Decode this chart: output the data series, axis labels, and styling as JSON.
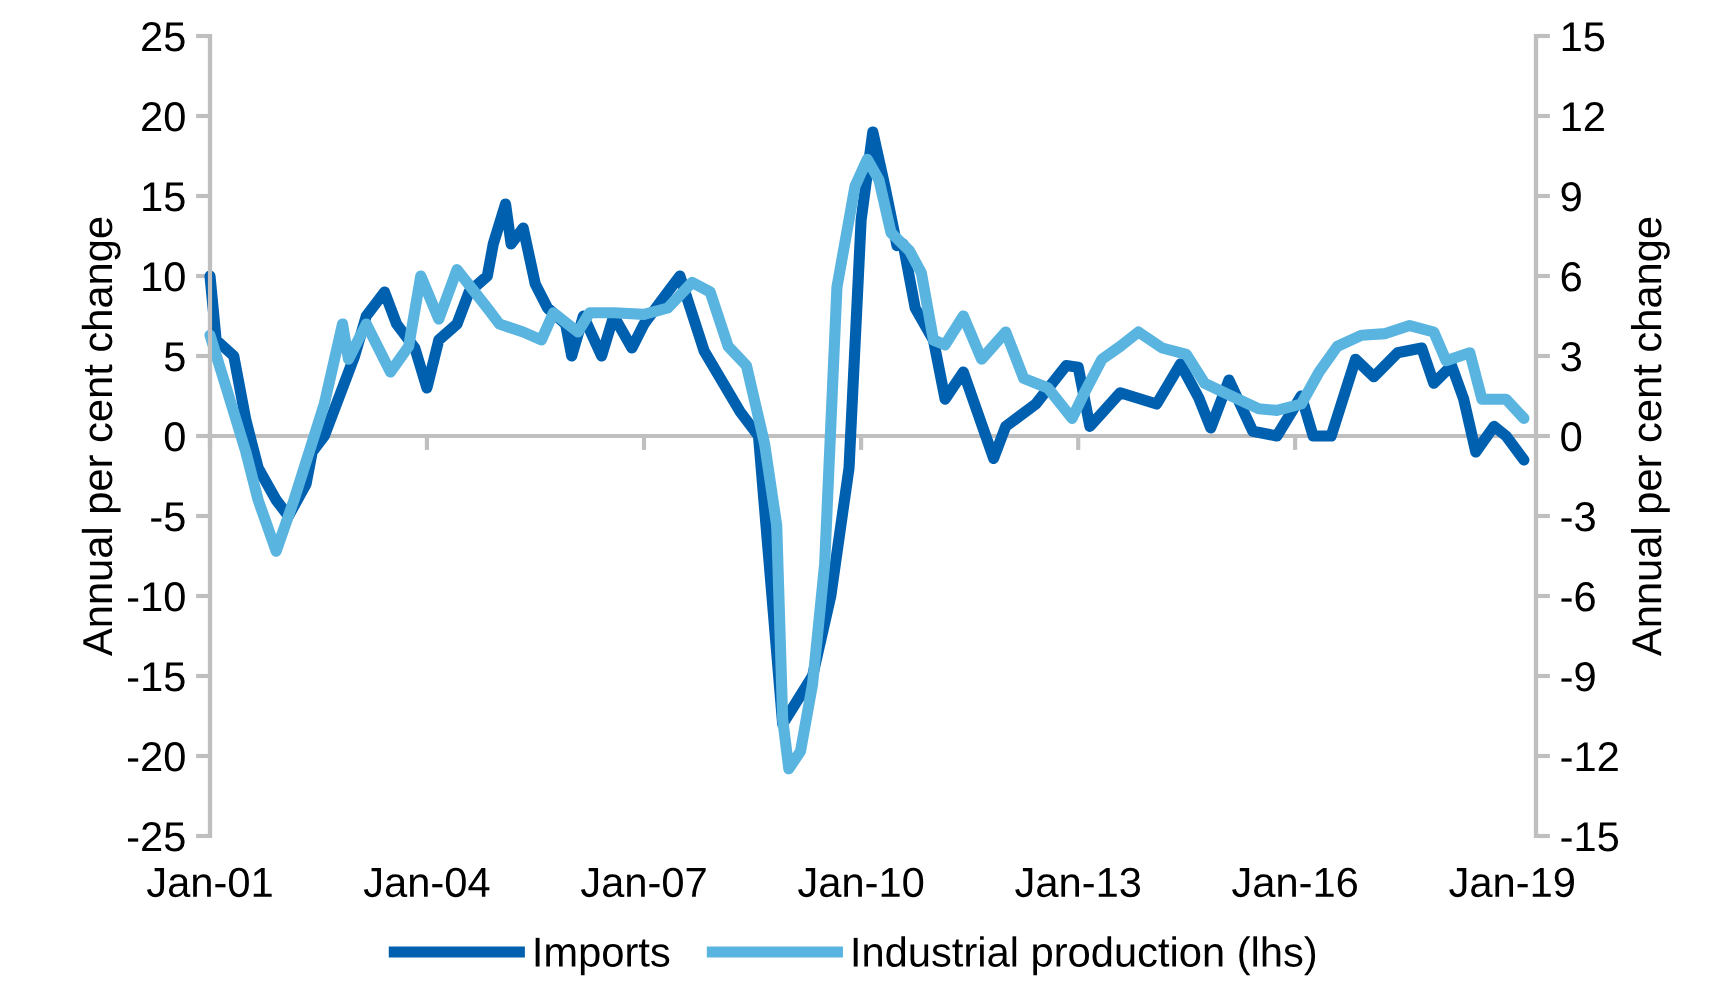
{
  "chart_data": {
    "type": "line",
    "ylabel": "Annual per cent change",
    "y2label": "Annual per cent change",
    "xlim": [
      "2001-01",
      "2019-05"
    ],
    "xticks": [
      {
        "value": "2001-01",
        "label": "Jan-01"
      },
      {
        "value": "2004-01",
        "label": "Jan-04"
      },
      {
        "value": "2007-01",
        "label": "Jan-07"
      },
      {
        "value": "2010-01",
        "label": "Jan-10"
      },
      {
        "value": "2013-01",
        "label": "Jan-13"
      },
      {
        "value": "2016-01",
        "label": "Jan-16"
      },
      {
        "value": "2019-01",
        "label": "Jan-19"
      }
    ],
    "ylim": [
      -25,
      25
    ],
    "yticks": [
      -25,
      -20,
      -15,
      -10,
      -5,
      0,
      5,
      10,
      15,
      20,
      25
    ],
    "y2lim": [
      -15,
      15
    ],
    "y2ticks": [
      -15,
      -12,
      -9,
      -6,
      -3,
      0,
      3,
      6,
      9,
      12,
      15
    ],
    "grid": false,
    "legend": "bottom",
    "ref_lines": [
      {
        "axis": "y",
        "value": 0,
        "color": "#bfbfbf"
      }
    ],
    "series": [
      {
        "name": "Imports",
        "color": "#0060b0",
        "x": [
          "2001-01",
          "2001-02",
          "2001-05",
          "2001-07",
          "2001-09",
          "2001-12",
          "2002-02",
          "2002-05",
          "2002-06",
          "2002-08",
          "2002-11",
          "2003-01",
          "2003-03",
          "2003-06",
          "2003-08",
          "2003-11",
          "2004-01",
          "2004-03",
          "2004-06",
          "2004-08",
          "2004-11",
          "2004-12",
          "2005-02",
          "2005-03",
          "2005-05",
          "2005-07",
          "2005-09",
          "2005-12",
          "2006-01",
          "2006-03",
          "2006-06",
          "2006-08",
          "2006-11",
          "2007-01",
          "2007-05",
          "2007-07",
          "2007-11",
          "2008-05",
          "2008-08",
          "2008-12",
          "2009-05",
          "2009-08",
          "2009-11",
          "2010-01",
          "2010-03",
          "2010-05",
          "2010-07",
          "2010-08",
          "2010-10",
          "2011-01",
          "2011-03",
          "2011-06",
          "2011-11",
          "2012-01",
          "2012-06",
          "2012-11",
          "2013-01",
          "2013-03",
          "2013-08",
          "2014-02",
          "2014-06",
          "2014-09",
          "2014-11",
          "2015-02",
          "2015-06",
          "2015-10",
          "2016-02",
          "2016-04",
          "2016-07",
          "2016-11",
          "2017-02",
          "2017-06",
          "2017-10",
          "2017-12",
          "2018-03",
          "2018-05",
          "2018-07",
          "2018-10",
          "2018-12",
          "2019-03"
        ],
        "values": [
          10,
          6,
          5,
          1,
          -2,
          -4,
          -5,
          -3,
          -1,
          0,
          3,
          5,
          7.5,
          9,
          7,
          5.5,
          3,
          6,
          7,
          9,
          10,
          12,
          14.5,
          12,
          13,
          9.5,
          8,
          7,
          5,
          7.5,
          5,
          7.5,
          5.5,
          7,
          9,
          10,
          5.3,
          1.5,
          0,
          -18,
          -15,
          -10,
          -2,
          13.5,
          19,
          15.6,
          11.9,
          12,
          8,
          6,
          2.3,
          4,
          -1.4,
          0.6,
          2,
          4.4,
          4.3,
          0.6,
          2.7,
          2,
          4.5,
          2.4,
          0.5,
          3.5,
          0.3,
          0,
          2.5,
          0,
          0,
          4.8,
          3.7,
          5.2,
          5.5,
          3.3,
          4.4,
          2.3,
          -1,
          0.6,
          0,
          -1.5
        ]
      },
      {
        "name": "Industrial production (lhs)",
        "color": "#5ab4e0",
        "x": [
          "2001-01",
          "2001-04",
          "2001-07",
          "2001-09",
          "2001-12",
          "2002-03",
          "2002-08",
          "2002-11",
          "2002-12",
          "2003-03",
          "2003-07",
          "2003-10",
          "2003-12",
          "2004-03",
          "2004-06",
          "2004-11",
          "2005-01",
          "2005-05",
          "2005-08",
          "2005-10",
          "2006-02",
          "2006-04",
          "2006-08",
          "2007-01",
          "2007-05",
          "2007-09",
          "2007-12",
          "2008-03",
          "2008-06",
          "2008-09",
          "2008-11",
          "2008-12",
          "2009-01",
          "2009-03",
          "2009-05",
          "2009-07",
          "2009-09",
          "2009-12",
          "2010-02",
          "2010-04",
          "2010-06",
          "2010-09",
          "2010-11",
          "2011-01",
          "2011-03",
          "2011-06",
          "2011-09",
          "2012-01",
          "2012-04",
          "2012-08",
          "2012-12",
          "2013-02",
          "2013-05",
          "2013-08",
          "2013-11",
          "2014-03",
          "2014-07",
          "2014-10",
          "2015-03",
          "2015-07",
          "2015-10",
          "2016-02",
          "2016-05",
          "2016-08",
          "2016-12",
          "2017-04",
          "2017-08",
          "2017-12",
          "2018-02",
          "2018-06",
          "2018-08",
          "2018-12",
          "2019-03"
        ],
        "values": [
          6.3,
          2.7,
          -1,
          -4,
          -7.2,
          -4,
          2,
          7,
          4.8,
          7,
          4,
          5.6,
          10,
          7.3,
          10.4,
          8,
          7,
          6.5,
          6,
          7.7,
          6.5,
          7.7,
          7.7,
          7.6,
          8,
          9.6,
          9,
          5.6,
          4.4,
          -0.5,
          -5.6,
          -17.7,
          -20.8,
          -19.7,
          -15.5,
          -8,
          9.3,
          15.6,
          17.3,
          16,
          12.7,
          11.6,
          10.2,
          6,
          5.7,
          7.5,
          4.8,
          6.5,
          3.6,
          3,
          1.1,
          2.7,
          4.8,
          5.6,
          6.5,
          5.5,
          5.1,
          3.3,
          2.4,
          1.7,
          1.6,
          2,
          4,
          5.6,
          6.3,
          6.4,
          6.9,
          6.5,
          4.7,
          5.2,
          2.3,
          2.3,
          1.1
        ]
      }
    ]
  }
}
